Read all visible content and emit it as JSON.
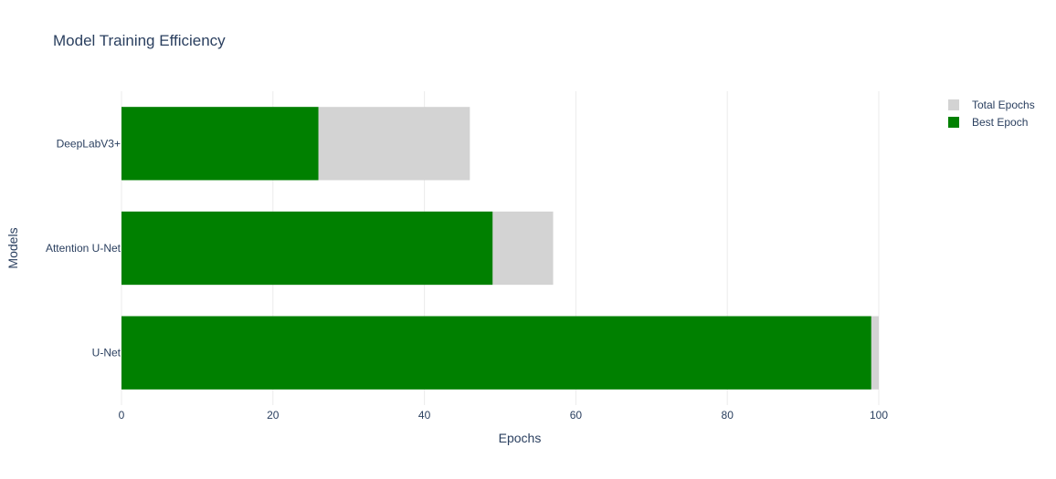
{
  "chart_data": {
    "type": "bar",
    "orientation": "horizontal",
    "barmode": "overlay",
    "title": "Model Training Efficiency",
    "xlabel": "Epochs",
    "ylabel": "Models",
    "categories": [
      "U-Net",
      "Attention U-Net",
      "DeepLabV3+"
    ],
    "xlim": [
      0,
      100
    ],
    "xticks": [
      0,
      20,
      40,
      60,
      80,
      100
    ],
    "grid": true,
    "legend_position": "top-right",
    "series": [
      {
        "name": "Total Epochs",
        "values": [
          100,
          57,
          46
        ],
        "color": "#d3d3d3"
      },
      {
        "name": "Best Epoch",
        "values": [
          99,
          49,
          26
        ],
        "color": "#008000"
      }
    ]
  }
}
